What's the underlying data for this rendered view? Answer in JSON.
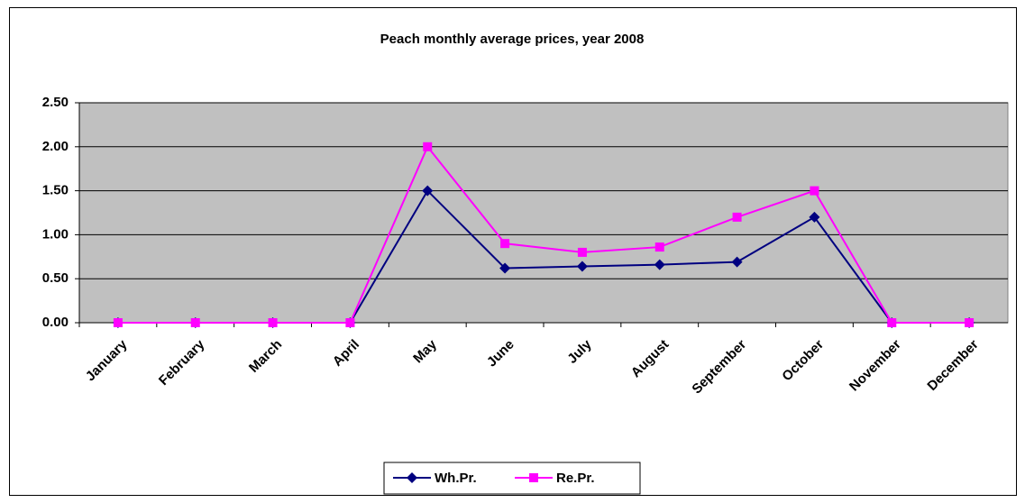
{
  "chart_data": {
    "type": "line",
    "title": "Peach monthly average prices, year 2008",
    "categories": [
      "January",
      "February",
      "March",
      "April",
      "May",
      "June",
      "July",
      "August",
      "September",
      "October",
      "November",
      "December"
    ],
    "series": [
      {
        "name": "Wh.Pr.",
        "color": "#000080",
        "marker": "diamond",
        "values": [
          0,
          0,
          0,
          0,
          1.5,
          0.62,
          0.64,
          0.66,
          0.69,
          1.2,
          0,
          0
        ]
      },
      {
        "name": "Re.Pr.",
        "color": "#ff00ff",
        "marker": "square",
        "values": [
          0,
          0,
          0,
          0,
          2.0,
          0.9,
          0.8,
          0.86,
          1.2,
          1.5,
          0,
          0
        ]
      }
    ],
    "ylim": [
      0,
      2.5
    ],
    "yticks": [
      {
        "value": 0,
        "label": "0.00"
      },
      {
        "value": 0.5,
        "label": "0.50"
      },
      {
        "value": 1,
        "label": "1.00"
      },
      {
        "value": 1.5,
        "label": "1.50"
      },
      {
        "value": 2,
        "label": "2.00"
      },
      {
        "value": 2.5,
        "label": "2.50"
      }
    ],
    "grid": true,
    "legend": "bottom"
  }
}
